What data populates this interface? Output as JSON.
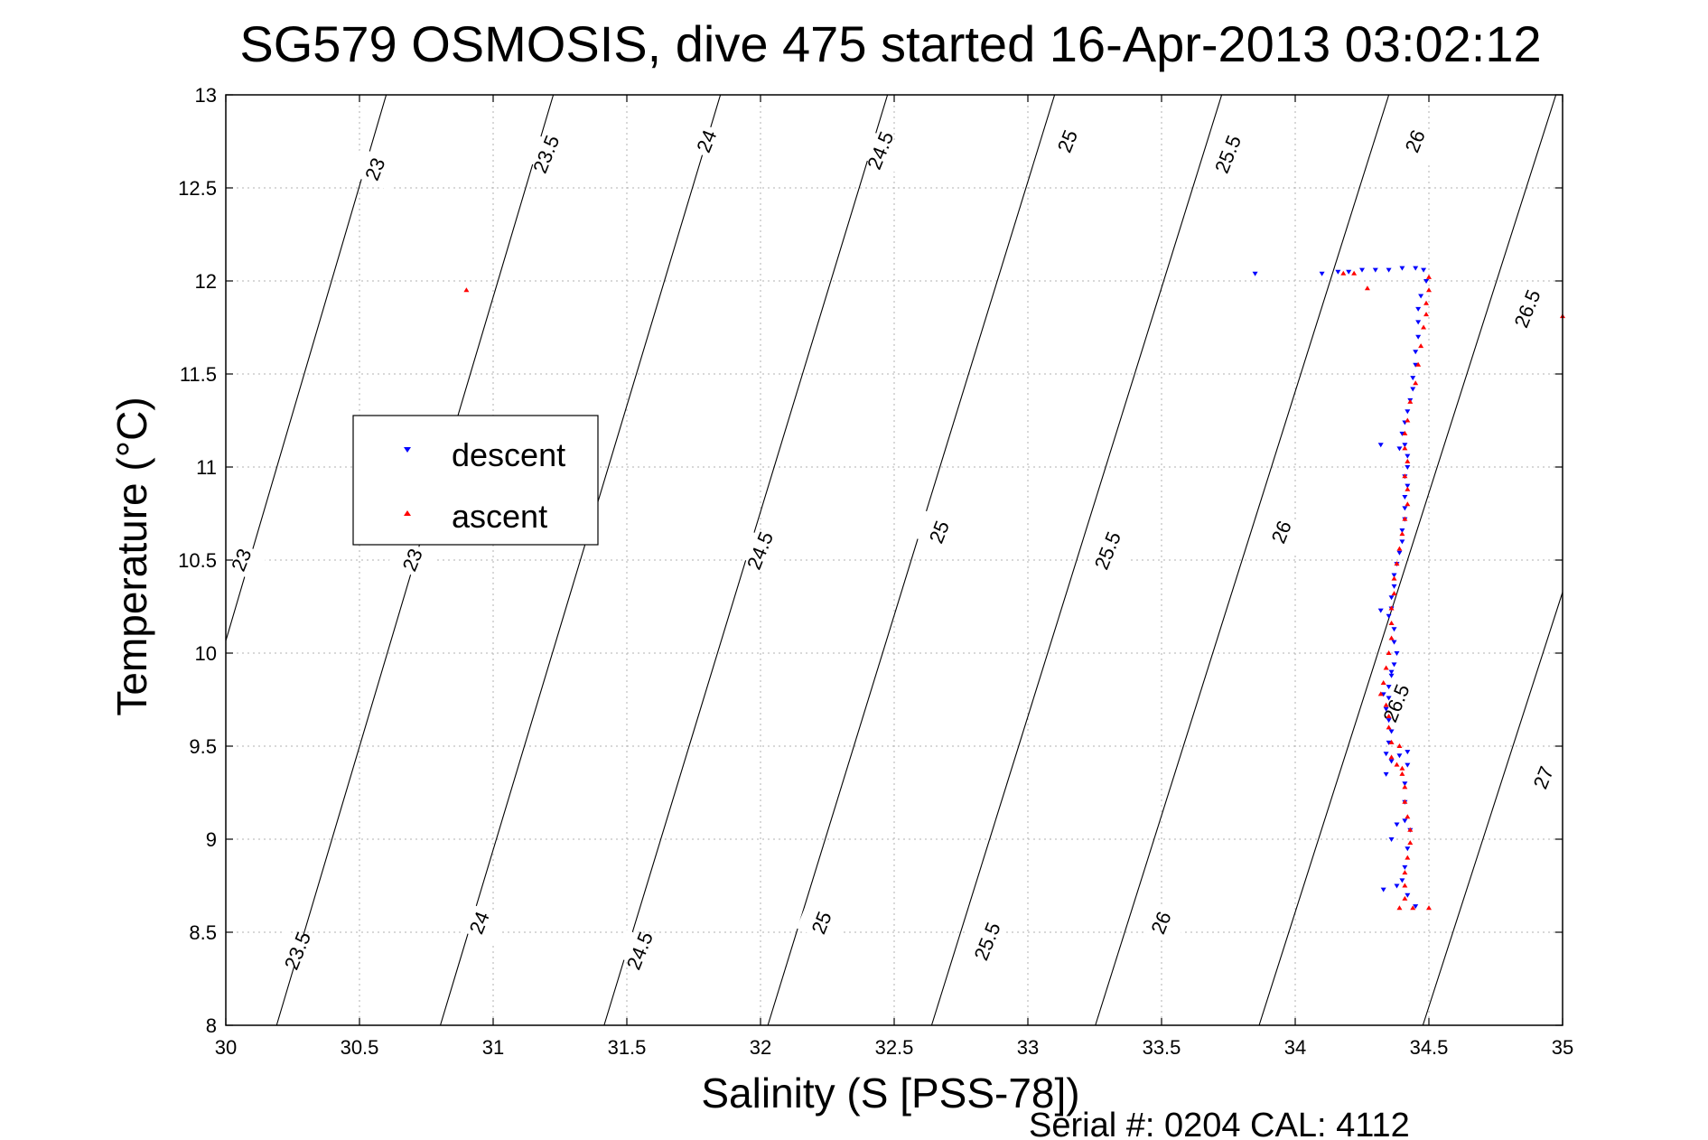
{
  "chart_data": {
    "type": "scatter",
    "title": "SG579 OSMOSIS, dive 475 started 16-Apr-2013 03:02:12",
    "xlabel": "Salinity (S [PSS-78])",
    "ylabel": "Temperature (°C)",
    "xlim": [
      30,
      35
    ],
    "ylim": [
      8,
      13
    ],
    "xticks": [
      30,
      30.5,
      31,
      31.5,
      32,
      32.5,
      33,
      33.5,
      34,
      34.5,
      35
    ],
    "yticks": [
      8,
      8.5,
      9,
      9.5,
      10,
      10.5,
      11,
      11.5,
      12,
      12.5,
      13
    ],
    "xtick_labels": [
      "30",
      "30.5",
      "31",
      "31.5",
      "32",
      "32.5",
      "33",
      "33.5",
      "34",
      "34.5",
      "35"
    ],
    "ytick_labels": [
      "8",
      "8.5",
      "9",
      "9.5",
      "10",
      "10.5",
      "11",
      "11.5",
      "12",
      "12.5",
      "13"
    ],
    "grid": true,
    "legend_position": "center-left",
    "density_contours": {
      "levels": [
        23,
        23.5,
        24,
        24.5,
        25,
        25.5,
        26,
        26.5,
        27
      ],
      "labels": [
        "23",
        "23.5",
        "24",
        "24.5",
        "25",
        "25.5",
        "26",
        "26.5",
        "27"
      ],
      "label_positions": [
        {
          "level": "23",
          "s": 30.56,
          "t": 12.6
        },
        {
          "level": "23",
          "s": 30.06,
          "t": 10.5
        },
        {
          "level": "23",
          "s": 30.7,
          "t": 10.5
        },
        {
          "level": "23.5",
          "s": 31.2,
          "t": 12.68
        },
        {
          "level": "23.5",
          "s": 30.27,
          "t": 8.4
        },
        {
          "level": "24",
          "s": 31.8,
          "t": 12.75
        },
        {
          "level": "24",
          "s": 30.95,
          "t": 8.55
        },
        {
          "level": "24.5",
          "s": 32.45,
          "t": 12.7
        },
        {
          "level": "24.5",
          "s": 32.0,
          "t": 10.55
        },
        {
          "level": "24.5",
          "s": 31.55,
          "t": 8.4
        },
        {
          "level": "25",
          "s": 33.15,
          "t": 12.75
        },
        {
          "level": "25",
          "s": 32.67,
          "t": 10.65
        },
        {
          "level": "25",
          "s": 32.23,
          "t": 8.55
        },
        {
          "level": "25.5",
          "s": 33.75,
          "t": 12.68
        },
        {
          "level": "25.5",
          "s": 33.3,
          "t": 10.55
        },
        {
          "level": "25.5",
          "s": 32.85,
          "t": 8.45
        },
        {
          "level": "26",
          "s": 34.45,
          "t": 12.75
        },
        {
          "level": "26",
          "s": 33.95,
          "t": 10.65
        },
        {
          "level": "26",
          "s": 33.5,
          "t": 8.55
        },
        {
          "level": "26.5",
          "s": 34.87,
          "t": 11.85
        },
        {
          "level": "26.5",
          "s": 34.38,
          "t": 9.73
        },
        {
          "level": "27",
          "s": 34.93,
          "t": 9.33
        }
      ]
    },
    "series": [
      {
        "name": "descent",
        "color": "#0000ff",
        "marker": "triangle-down",
        "points": [
          [
            33.85,
            12.04
          ],
          [
            34.1,
            12.04
          ],
          [
            34.16,
            12.05
          ],
          [
            34.2,
            12.05
          ],
          [
            34.25,
            12.06
          ],
          [
            34.3,
            12.06
          ],
          [
            34.35,
            12.06
          ],
          [
            34.4,
            12.07
          ],
          [
            34.45,
            12.07
          ],
          [
            34.48,
            12.06
          ],
          [
            34.49,
            12.0
          ],
          [
            34.47,
            11.92
          ],
          [
            34.46,
            11.85
          ],
          [
            34.46,
            11.78
          ],
          [
            34.46,
            11.7
          ],
          [
            34.45,
            11.62
          ],
          [
            34.45,
            11.55
          ],
          [
            34.44,
            11.48
          ],
          [
            34.44,
            11.42
          ],
          [
            34.43,
            11.36
          ],
          [
            34.42,
            11.3
          ],
          [
            34.41,
            11.24
          ],
          [
            34.4,
            11.18
          ],
          [
            34.41,
            11.12
          ],
          [
            34.42,
            11.06
          ],
          [
            34.39,
            11.1
          ],
          [
            34.32,
            11.12
          ],
          [
            34.42,
            11.0
          ],
          [
            34.41,
            10.95
          ],
          [
            34.42,
            10.9
          ],
          [
            34.41,
            10.84
          ],
          [
            34.41,
            10.78
          ],
          [
            34.41,
            10.72
          ],
          [
            34.4,
            10.66
          ],
          [
            34.4,
            10.6
          ],
          [
            34.39,
            10.54
          ],
          [
            34.38,
            10.48
          ],
          [
            34.37,
            10.42
          ],
          [
            34.37,
            10.36
          ],
          [
            34.36,
            10.3
          ],
          [
            34.36,
            10.24
          ],
          [
            34.35,
            10.2
          ],
          [
            34.32,
            10.23
          ],
          [
            34.37,
            10.13
          ],
          [
            34.37,
            10.06
          ],
          [
            34.38,
            10.0
          ],
          [
            34.37,
            9.94
          ],
          [
            34.36,
            9.88
          ],
          [
            34.35,
            9.82
          ],
          [
            34.35,
            9.76
          ],
          [
            34.34,
            9.7
          ],
          [
            34.35,
            9.64
          ],
          [
            34.36,
            9.58
          ],
          [
            34.35,
            9.52
          ],
          [
            34.34,
            9.46
          ],
          [
            34.36,
            9.42
          ],
          [
            34.39,
            9.45
          ],
          [
            34.42,
            9.47
          ],
          [
            34.42,
            9.4
          ],
          [
            34.41,
            9.3
          ],
          [
            34.41,
            9.2
          ],
          [
            34.41,
            9.1
          ],
          [
            34.43,
            9.05
          ],
          [
            34.42,
            8.95
          ],
          [
            34.41,
            8.85
          ],
          [
            34.4,
            8.78
          ],
          [
            34.38,
            8.75
          ],
          [
            34.33,
            8.73
          ],
          [
            34.45,
            8.64
          ],
          [
            34.42,
            8.7
          ],
          [
            34.38,
            9.08
          ],
          [
            34.36,
            9.0
          ],
          [
            34.34,
            9.35
          ],
          [
            34.36,
            9.9
          ],
          [
            34.33,
            9.78
          ]
        ]
      },
      {
        "name": "ascent",
        "color": "#ff0000",
        "marker": "triangle-up",
        "points": [
          [
            30.9,
            11.95
          ],
          [
            34.18,
            12.04
          ],
          [
            34.22,
            12.04
          ],
          [
            34.27,
            11.96
          ],
          [
            34.5,
            12.02
          ],
          [
            34.5,
            11.95
          ],
          [
            34.49,
            11.88
          ],
          [
            34.49,
            11.82
          ],
          [
            34.48,
            11.75
          ],
          [
            34.47,
            11.65
          ],
          [
            34.46,
            11.55
          ],
          [
            34.45,
            11.45
          ],
          [
            34.43,
            11.35
          ],
          [
            34.42,
            11.25
          ],
          [
            34.41,
            11.18
          ],
          [
            34.41,
            11.1
          ],
          [
            34.42,
            11.03
          ],
          [
            34.41,
            10.95
          ],
          [
            34.42,
            10.88
          ],
          [
            34.42,
            10.8
          ],
          [
            34.41,
            10.72
          ],
          [
            34.4,
            10.64
          ],
          [
            34.39,
            10.56
          ],
          [
            34.38,
            10.48
          ],
          [
            34.37,
            10.4
          ],
          [
            34.37,
            10.32
          ],
          [
            34.36,
            10.24
          ],
          [
            34.36,
            10.16
          ],
          [
            34.36,
            10.08
          ],
          [
            34.35,
            10.0
          ],
          [
            34.34,
            9.92
          ],
          [
            34.33,
            9.84
          ],
          [
            34.32,
            9.78
          ],
          [
            34.34,
            9.72
          ],
          [
            34.35,
            9.66
          ],
          [
            34.35,
            9.6
          ],
          [
            34.36,
            9.52
          ],
          [
            34.36,
            9.44
          ],
          [
            34.38,
            9.4
          ],
          [
            34.4,
            9.35
          ],
          [
            34.41,
            9.28
          ],
          [
            34.41,
            9.2
          ],
          [
            34.42,
            9.12
          ],
          [
            34.43,
            9.05
          ],
          [
            34.43,
            8.98
          ],
          [
            34.42,
            8.9
          ],
          [
            34.41,
            8.82
          ],
          [
            34.41,
            8.75
          ],
          [
            34.41,
            8.68
          ],
          [
            34.39,
            8.63
          ],
          [
            34.44,
            8.63
          ],
          [
            34.5,
            8.63
          ],
          [
            35.0,
            11.81
          ],
          [
            34.39,
            9.5
          ],
          [
            34.4,
            9.38
          ]
        ]
      }
    ]
  },
  "footer": {
    "serial_text": "Serial #: 0204  CAL: 4112"
  }
}
